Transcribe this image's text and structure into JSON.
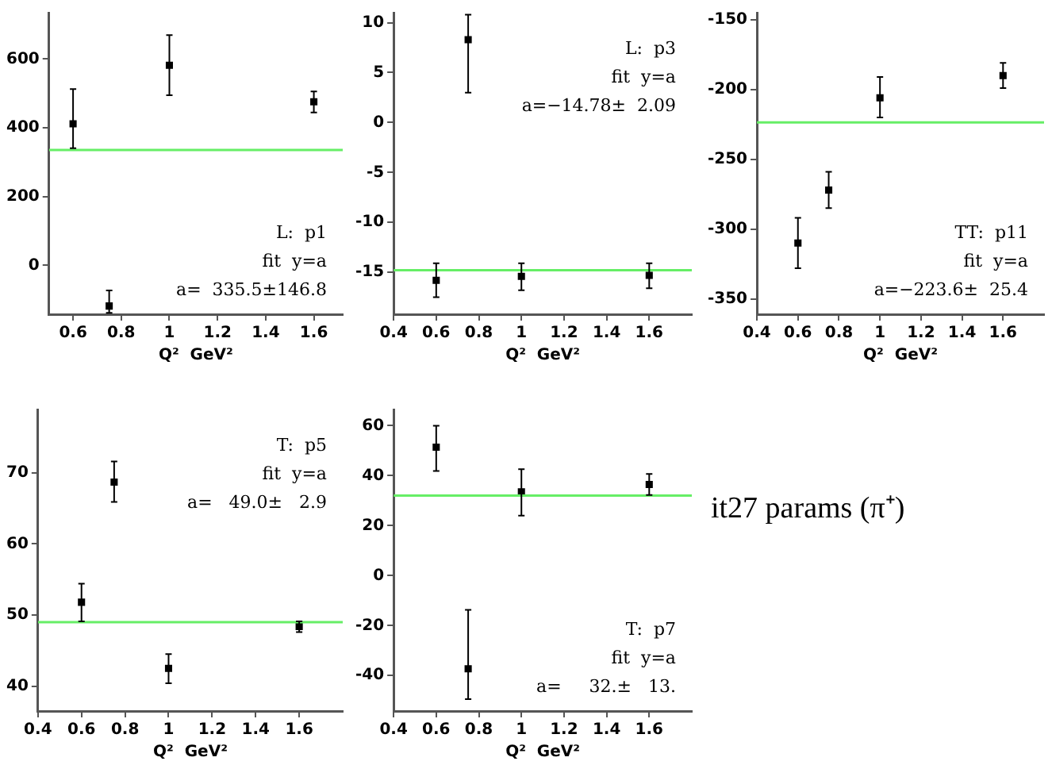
{
  "chart_data": [
    {
      "type": "scatter",
      "x": [
        0.6,
        0.75,
        1.0,
        1.6
      ],
      "values": [
        412,
        -118,
        582,
        476
      ],
      "errors": [
        [
          341,
          513
        ],
        [
          -138,
          -73
        ],
        [
          495,
          670
        ],
        [
          445,
          506
        ]
      ],
      "color": "#000000",
      "marker": "square",
      "xlim": [
        0.5,
        1.72
      ],
      "xticks": [
        0.6,
        0.8,
        1.0,
        1.2,
        1.4,
        1.6
      ],
      "ylim": [
        -142,
        735
      ],
      "yticks": [
        0,
        200,
        400,
        600
      ],
      "xlabel": "Q²  GeV²",
      "ref_lines": [
        {
          "axis": "y",
          "value": 335.5,
          "color": "#66ee66"
        }
      ],
      "annotations": [
        "L:  p1",
        "fit  y=a",
        "a=  335.5±146.8"
      ]
    },
    {
      "type": "scatter",
      "x": [
        0.6,
        0.75,
        1.0,
        1.6
      ],
      "values": [
        -15.8,
        8.3,
        -15.4,
        -15.3
      ],
      "errors": [
        [
          -17.5,
          -14.1
        ],
        [
          3.0,
          10.8
        ],
        [
          -16.8,
          -14.1
        ],
        [
          -16.6,
          -14.1
        ]
      ],
      "color": "#000000",
      "marker": "square",
      "xlim": [
        0.4,
        1.8
      ],
      "xticks": [
        0.4,
        0.6,
        0.8,
        1.0,
        1.2,
        1.4,
        1.6
      ],
      "ylim": [
        -19.2,
        11
      ],
      "yticks": [
        -15,
        -10,
        -5,
        0,
        5,
        10
      ],
      "xlabel": "Q²  GeV²",
      "ref_lines": [
        {
          "axis": "y",
          "value": -14.78,
          "color": "#66ee66"
        }
      ],
      "annotations": [
        "L:  p3",
        "fit  y=a",
        "a=−14.78±  2.09"
      ]
    },
    {
      "type": "scatter",
      "x": [
        0.6,
        0.75,
        1.0,
        1.6
      ],
      "values": [
        -310,
        -272,
        -206,
        -190
      ],
      "errors": [
        [
          -328,
          -292
        ],
        [
          -285,
          -259
        ],
        [
          -220,
          -191
        ],
        [
          -199,
          -181
        ]
      ],
      "color": "#000000",
      "marker": "square",
      "xlim": [
        0.4,
        1.8
      ],
      "xticks": [
        0.4,
        0.6,
        0.8,
        1.0,
        1.2,
        1.4,
        1.6
      ],
      "ylim": [
        -361,
        -145
      ],
      "yticks": [
        -350,
        -300,
        -250,
        -200,
        -150
      ],
      "xlabel": "Q²  GeV²",
      "ref_lines": [
        {
          "axis": "y",
          "value": -223.6,
          "color": "#66ee66"
        }
      ],
      "annotations": [
        "TT:  p11",
        "fit  y=a",
        "a=−223.6±  25.4"
      ]
    },
    {
      "type": "scatter",
      "x": [
        0.6,
        0.75,
        1.0,
        1.6
      ],
      "values": [
        51.8,
        68.7,
        42.5,
        48.4
      ],
      "errors": [
        [
          49.1,
          54.4
        ],
        [
          65.9,
          71.6
        ],
        [
          40.4,
          44.5
        ],
        [
          47.6,
          49.1
        ]
      ],
      "color": "#000000",
      "marker": "square",
      "xlim": [
        0.4,
        1.8
      ],
      "xticks": [
        0.4,
        0.6,
        0.8,
        1.0,
        1.2,
        1.4,
        1.6
      ],
      "ylim": [
        36.5,
        78.9
      ],
      "yticks": [
        40,
        50,
        60,
        70
      ],
      "xlabel": "Q²  GeV²",
      "ref_lines": [
        {
          "axis": "y",
          "value": 49.0,
          "color": "#66ee66"
        }
      ],
      "annotations": [
        "T:  p5",
        "fit  y=a",
        "a=   49.0±   2.9"
      ]
    },
    {
      "type": "scatter",
      "x": [
        0.6,
        0.75,
        1.0,
        1.6
      ],
      "values": [
        51.4,
        -37.3,
        33.5,
        36.5
      ],
      "errors": [
        [
          41.9,
          60
        ],
        [
          -49.4,
          -13.7
        ],
        [
          24,
          42.6
        ],
        [
          32.3,
          40.7
        ]
      ],
      "color": "#000000",
      "marker": "square",
      "xlim": [
        0.4,
        1.8
      ],
      "xticks": [
        0.4,
        0.6,
        0.8,
        1.0,
        1.2,
        1.4,
        1.6
      ],
      "ylim": [
        -54.2,
        66.5
      ],
      "yticks": [
        -40,
        -20,
        0,
        20,
        40,
        60
      ],
      "xlabel": "Q²  GeV²",
      "ref_lines": [
        {
          "axis": "y",
          "value": 32,
          "color": "#66ee66"
        }
      ],
      "annotations": [
        "T:  p7",
        "fit  y=a",
        "a=     32.±   13."
      ]
    },
    {
      "type": "other",
      "title": "it27 params (π⁺)"
    }
  ]
}
